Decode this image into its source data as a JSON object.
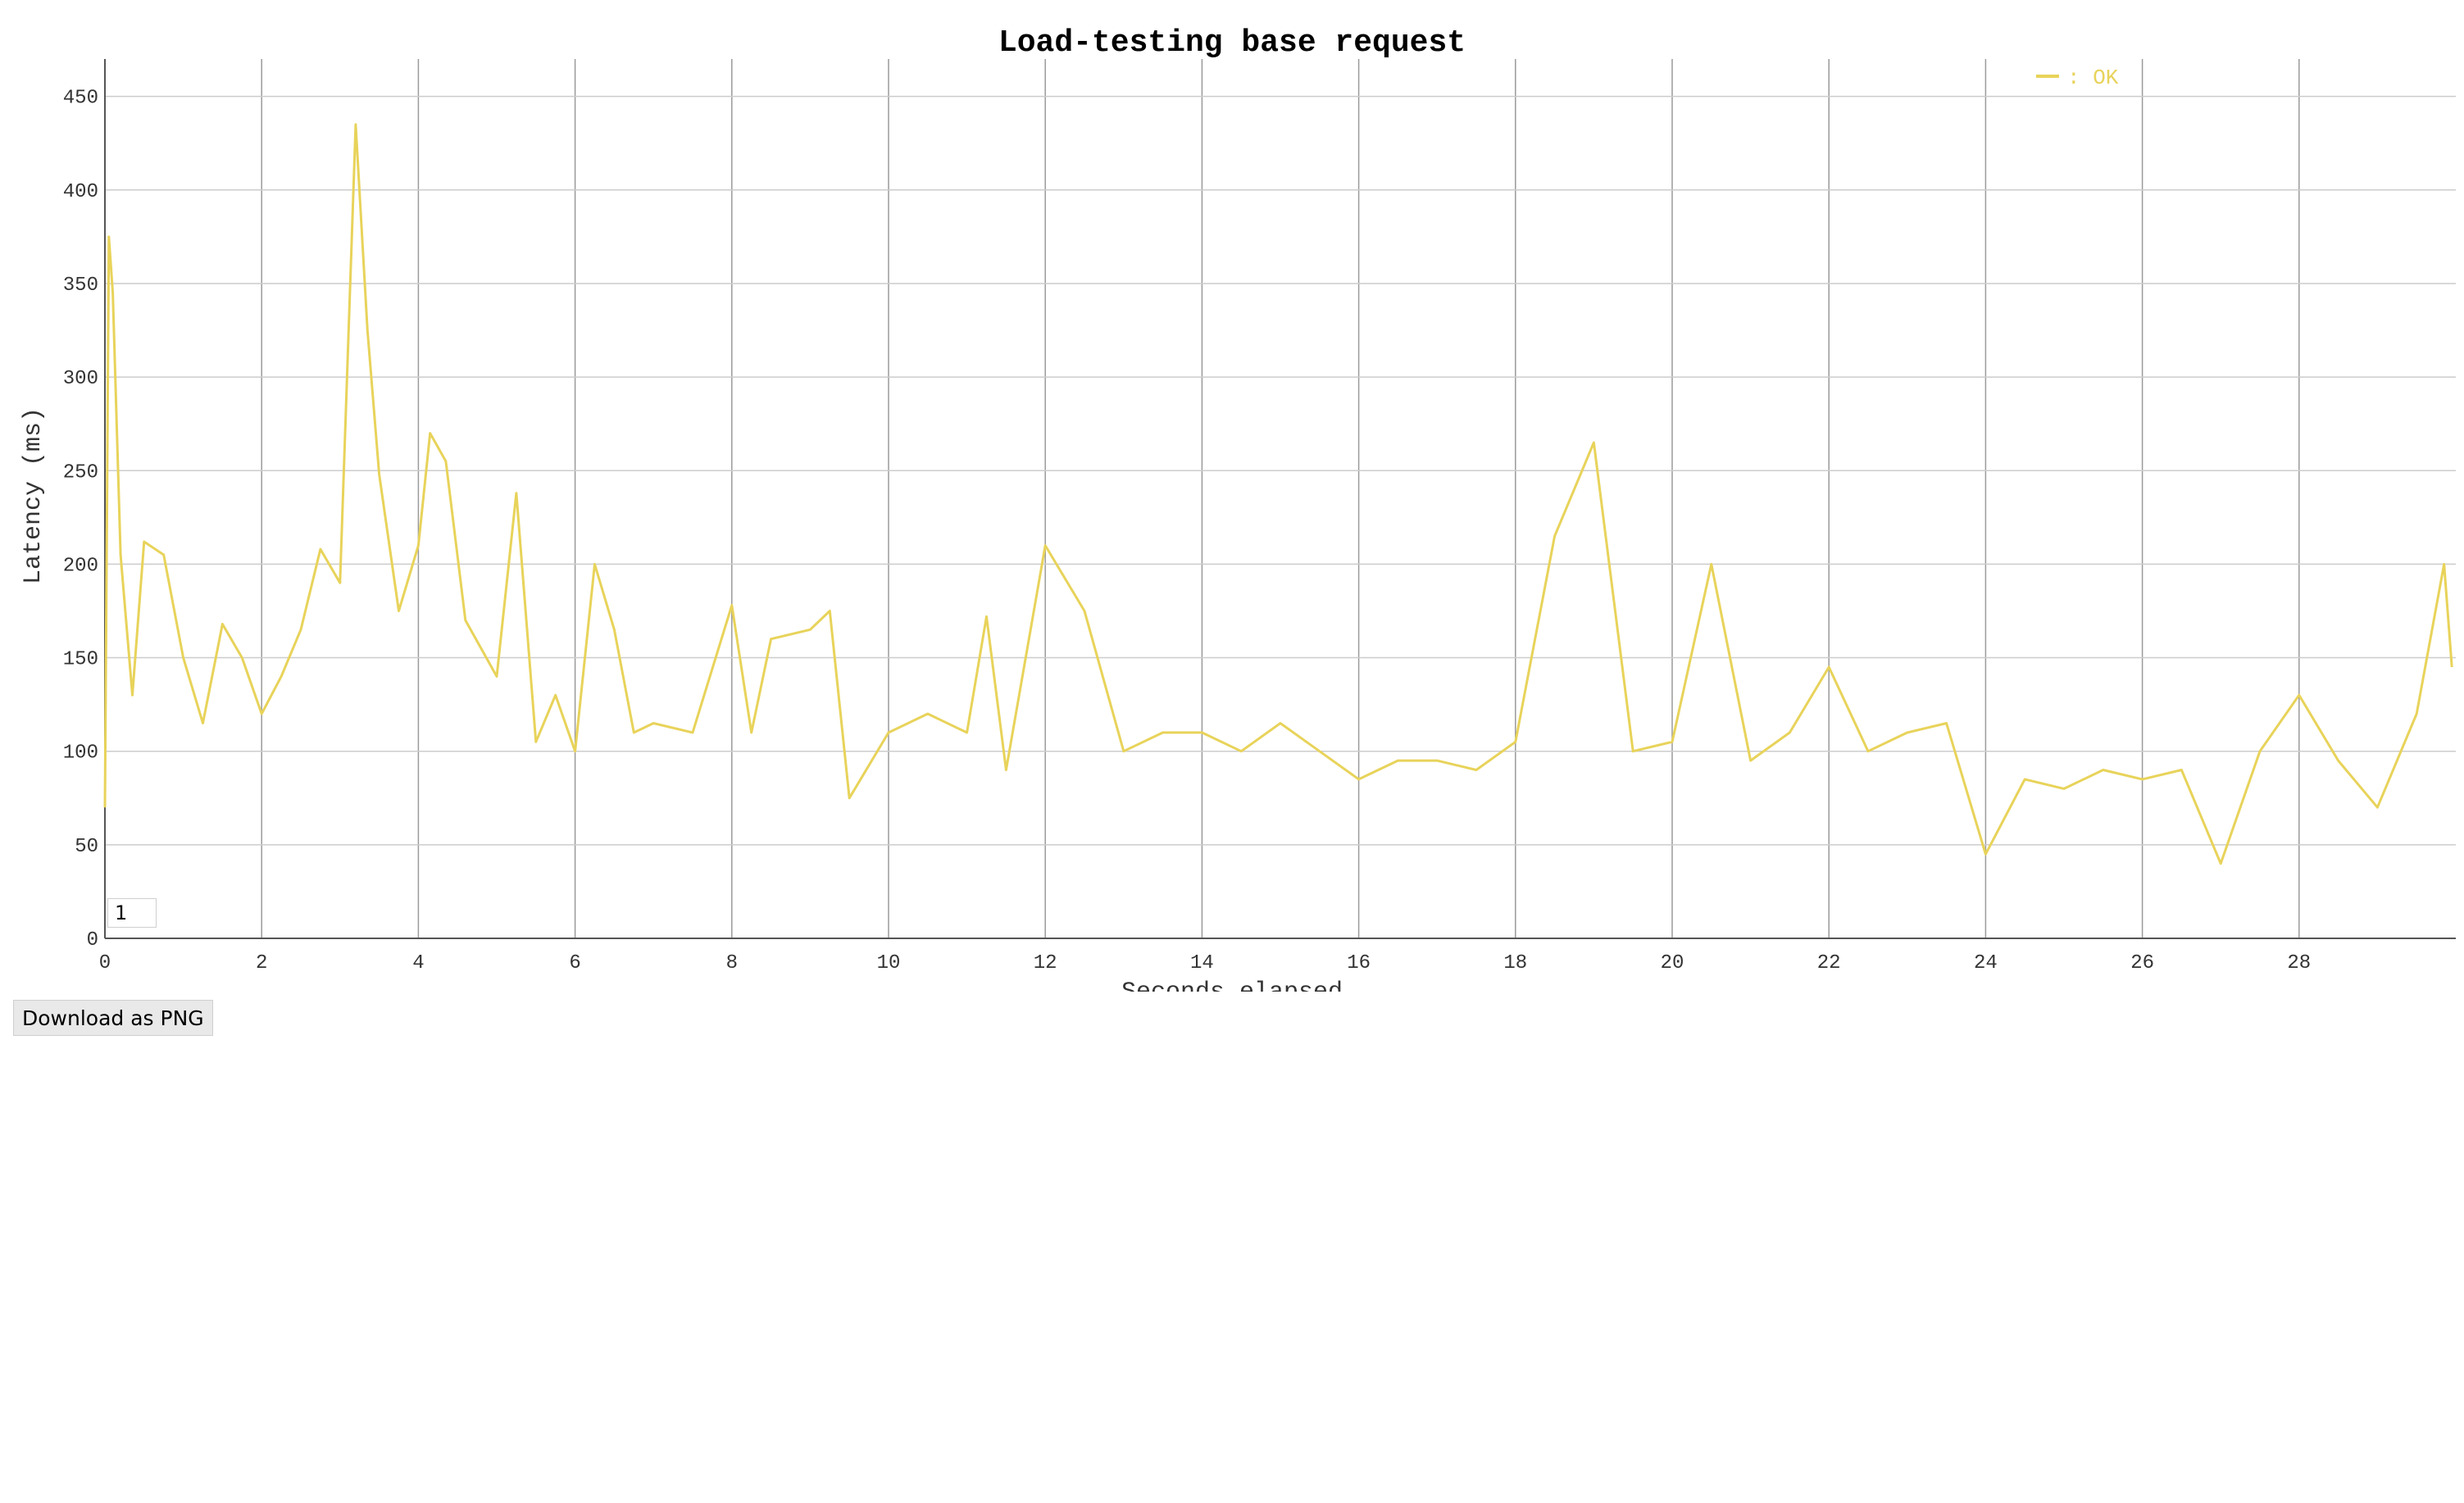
{
  "chart_data": {
    "type": "line",
    "title": "Load-testing base request",
    "xlabel": "Seconds elapsed",
    "ylabel": "Latency (ms)",
    "xlim": [
      0,
      30
    ],
    "ylim": [
      0,
      470
    ],
    "x_ticks": [
      0,
      2,
      4,
      6,
      8,
      10,
      12,
      14,
      16,
      18,
      20,
      22,
      24,
      26,
      28
    ],
    "y_ticks": [
      0,
      50,
      100,
      150,
      200,
      250,
      300,
      350,
      400,
      450
    ],
    "grid": true,
    "legend_position": "top-right",
    "series": [
      {
        "name": ": OK",
        "color": "#e8d35a",
        "x": [
          0,
          0.05,
          0.1,
          0.2,
          0.35,
          0.5,
          0.75,
          1.0,
          1.25,
          1.5,
          1.75,
          2.0,
          2.25,
          2.5,
          2.75,
          3.0,
          3.2,
          3.35,
          3.5,
          3.75,
          4.0,
          4.15,
          4.35,
          4.6,
          5.0,
          5.25,
          5.5,
          5.75,
          6.0,
          6.25,
          6.5,
          6.75,
          7.0,
          7.5,
          8.0,
          8.25,
          8.5,
          9.0,
          9.25,
          9.5,
          10.0,
          10.5,
          11.0,
          11.25,
          11.5,
          12.0,
          12.5,
          13.0,
          13.5,
          14.0,
          14.5,
          15.0,
          15.5,
          16.0,
          16.5,
          17.0,
          17.5,
          18.0,
          18.5,
          19.0,
          19.5,
          20.0,
          20.5,
          21.0,
          21.5,
          22.0,
          22.5,
          23.0,
          23.5,
          24.0,
          24.5,
          25.0,
          25.5,
          26.0,
          26.5,
          27.0,
          27.5,
          28.0,
          28.5,
          29.0,
          29.5,
          29.85,
          29.95
        ],
        "values": [
          70,
          375,
          345,
          205,
          130,
          212,
          205,
          150,
          115,
          168,
          150,
          120,
          140,
          165,
          208,
          190,
          435,
          325,
          248,
          175,
          210,
          270,
          255,
          170,
          140,
          238,
          105,
          130,
          100,
          200,
          165,
          110,
          115,
          110,
          178,
          110,
          160,
          165,
          175,
          75,
          110,
          120,
          110,
          172,
          90,
          210,
          175,
          100,
          110,
          110,
          100,
          115,
          100,
          85,
          95,
          95,
          90,
          105,
          215,
          265,
          100,
          105,
          200,
          95,
          110,
          145,
          100,
          110,
          115,
          45,
          85,
          80,
          90,
          85,
          90,
          40,
          100,
          130,
          95,
          70,
          120,
          200,
          145
        ]
      }
    ]
  },
  "controls": {
    "smoothing_value": "1",
    "download_label": "Download as PNG"
  }
}
